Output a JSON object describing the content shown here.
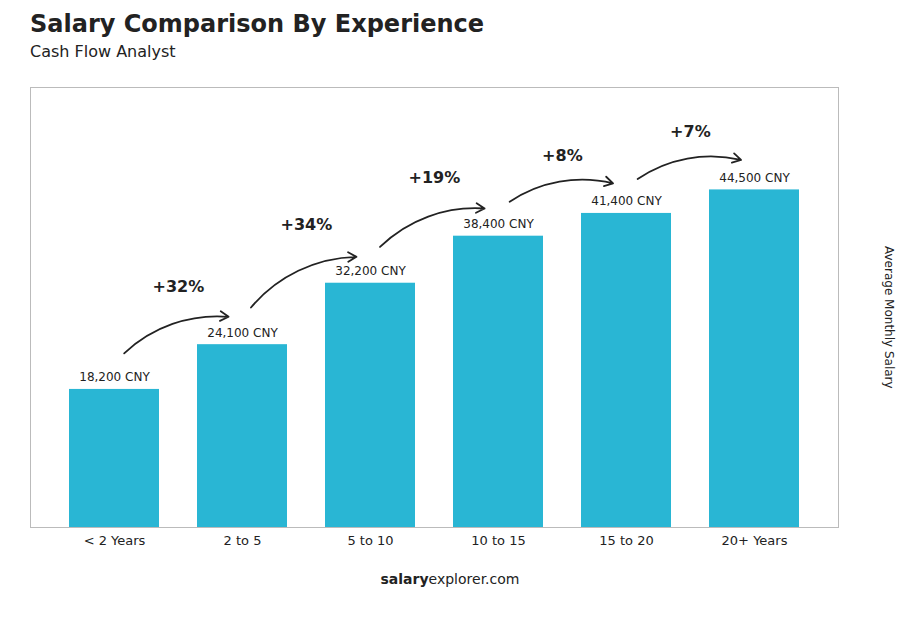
{
  "chart_data": {
    "type": "bar",
    "title": "Salary Comparison By Experience",
    "subtitle": "Cash Flow Analyst",
    "ylabel": "Average Monthly Salary",
    "categories": [
      "< 2 Years",
      "2 to 5",
      "5 to 10",
      "10 to 15",
      "15 to 20",
      "20+ Years"
    ],
    "values": [
      18200,
      24100,
      32200,
      38400,
      41400,
      44500
    ],
    "value_labels": [
      "18,200 CNY",
      "24,100 CNY",
      "32,200 CNY",
      "38,400 CNY",
      "41,400 CNY",
      "44,500 CNY"
    ],
    "data_labels": true,
    "annotations": [
      "+32%",
      "+34%",
      "+19%",
      "+8%",
      "+7%"
    ],
    "color": "#29b6d4",
    "ylim": [
      0,
      58000
    ],
    "tick_labels": "x",
    "grid": false,
    "watermark_bold": "salary",
    "watermark_normal": "explorer.com"
  }
}
